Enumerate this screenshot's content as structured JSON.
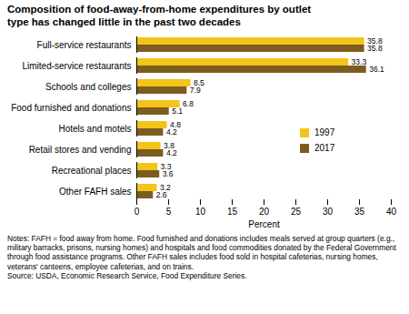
{
  "chart_data": {
    "type": "bar",
    "orientation": "horizontal",
    "title": "Composition of food-away-from-home expenditures by outlet type has changed little in the past two decades",
    "categories": [
      "Full-service restaurants",
      "Limited-service restaurants",
      "Schools and colleges",
      "Food furnished and donations",
      "Hotels and motels",
      "Retail stores and vending",
      "Recreational places",
      "Other FAFH sales"
    ],
    "series": [
      {
        "name": "1997",
        "color": "#f3c41a",
        "values": [
          35.8,
          33.3,
          8.5,
          6.8,
          4.8,
          3.8,
          3.3,
          3.2
        ]
      },
      {
        "name": "2017",
        "color": "#7d5c1f",
        "values": [
          35.8,
          36.1,
          7.9,
          5.1,
          4.2,
          4.2,
          3.6,
          2.6
        ]
      }
    ],
    "xlabel": "Percent",
    "xlim": [
      0,
      40
    ],
    "xticks": [
      0,
      5,
      10,
      15,
      20,
      25,
      30,
      35,
      40
    ],
    "grid": false,
    "legend": "right",
    "data_labels": true,
    "notes": "Notes: FAFH = food away from home. Food furnished and donations includes meals served at group quarters (e.g., military barracks, prisons, nursing homes) and hospitals and food commodities donated by the Federal Government through food assistance programs. Other FAFH sales includes food sold in hospital cafeterias, nursing homes, veterans' canteens, employee cafeterias, and on trains.",
    "source": "Source: USDA, Economic Research Service, Food Expenditure Series."
  }
}
